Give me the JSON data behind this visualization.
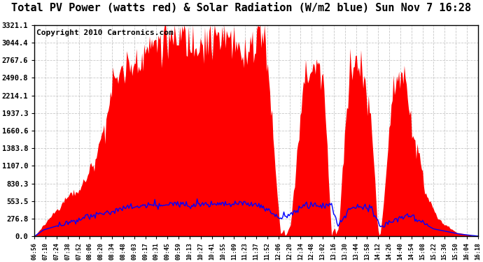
{
  "title": "Total PV Power (watts red) & Solar Radiation (W/m2 blue) Sun Nov 7 16:28",
  "copyright": "Copyright 2010 Cartronics.com",
  "yticks": [
    0.0,
    276.8,
    553.5,
    830.3,
    1107.0,
    1383.8,
    1660.6,
    1937.3,
    2214.1,
    2490.8,
    2767.6,
    3044.4,
    3321.1
  ],
  "ymax": 3321.1,
  "bg_color": "#ffffff",
  "plot_bg": "#ffffff",
  "grid_color": "#b0b0b0",
  "fill_color": "#ff0000",
  "line_color": "#0000ff",
  "xtick_labels": [
    "06:56",
    "07:10",
    "07:24",
    "07:38",
    "07:52",
    "08:06",
    "08:20",
    "08:34",
    "08:48",
    "09:03",
    "09:17",
    "09:31",
    "09:45",
    "09:59",
    "10:13",
    "10:27",
    "10:41",
    "10:55",
    "11:09",
    "11:23",
    "11:37",
    "11:52",
    "12:06",
    "12:20",
    "12:34",
    "12:48",
    "13:02",
    "13:16",
    "13:30",
    "13:44",
    "13:58",
    "14:12",
    "14:26",
    "14:40",
    "14:54",
    "15:08",
    "15:22",
    "15:36",
    "15:50",
    "16:04",
    "16:18"
  ],
  "title_fontsize": 11,
  "copyright_fontsize": 8,
  "solar_max_wm2": 600
}
